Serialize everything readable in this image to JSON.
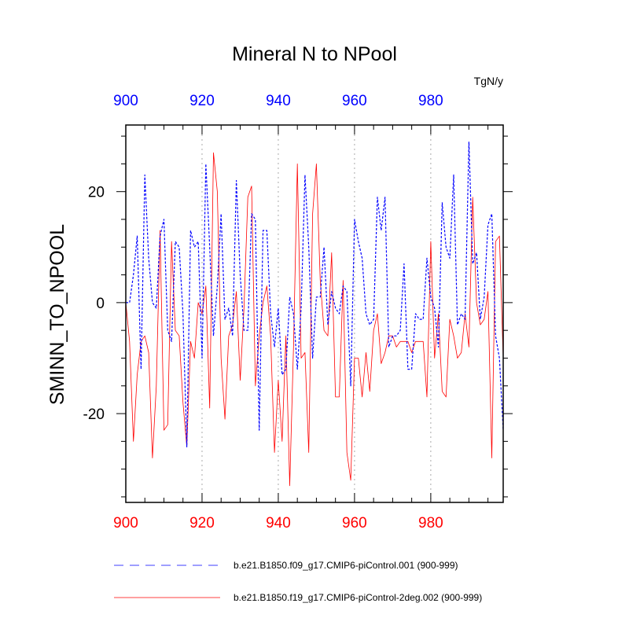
{
  "chart_data": {
    "type": "line",
    "title": "Mineral N to NPool",
    "units": "TgN/y",
    "ylabel": "SMINN_TO_NPOOL",
    "xlim": [
      900,
      999
    ],
    "ylim": [
      -36,
      32
    ],
    "x_ticks": [
      900,
      920,
      940,
      960,
      980
    ],
    "y_ticks": [
      -20,
      0,
      20
    ],
    "grid": "vertical dotted at major x ticks",
    "top_axis_color": "#0000ff",
    "bottom_axis_color": "#ff0000",
    "series": [
      {
        "name": "b.e21.B1850.f09_g17.CMIP6-piControl.001 (900-999)",
        "color": "#0000ff",
        "dash": "dashed",
        "x_start": 900,
        "values": [
          0,
          0,
          5,
          12,
          -12,
          23,
          8,
          0,
          -1,
          12,
          15,
          -5,
          -7,
          11,
          10,
          -2,
          -26,
          13,
          10,
          11,
          -10,
          25,
          10,
          -6,
          3,
          16,
          -3,
          -1,
          -6,
          22,
          5,
          -5,
          -5,
          16,
          15,
          -23,
          13,
          13,
          -2,
          -8,
          -1,
          -13,
          -12,
          1,
          -2,
          -12,
          -1,
          23,
          10,
          -10,
          1,
          1,
          10,
          -4,
          2,
          -1,
          -2,
          3,
          2,
          -15,
          15,
          11,
          8,
          -2,
          -4,
          -3,
          19,
          13,
          19,
          -8,
          -6,
          -6,
          -5,
          7,
          -12,
          -12,
          -2,
          -3,
          -3,
          8,
          1,
          -1,
          -8,
          18,
          10,
          8,
          23,
          -4,
          -2,
          -3,
          29,
          7,
          9,
          -3,
          1,
          14,
          16,
          -6,
          -10,
          -23
        ]
      },
      {
        "name": "b.e21.B1850.f19_g17.CMIP6-piControl-2deg.002 (900-999)",
        "color": "#ff0000",
        "dash": "solid",
        "x_start": 900,
        "values": [
          0,
          -7,
          -25,
          -13,
          -7,
          -6,
          -9,
          -28,
          -15,
          13,
          -23,
          -22,
          11,
          -5,
          -6,
          -18,
          -26,
          -7,
          -10,
          0,
          -2,
          3,
          -19,
          27,
          20,
          -10,
          -21,
          -6,
          -4,
          2,
          -14,
          -1,
          19,
          21,
          -15,
          -6,
          0,
          3,
          -6,
          -27,
          -14,
          -25,
          -6,
          -33,
          -8,
          25,
          -10,
          -9,
          -27,
          16,
          25,
          4,
          -5,
          -6,
          9,
          -17,
          -17,
          4,
          -27,
          -32,
          -10,
          -10,
          -17,
          -9,
          -16,
          -5,
          -2,
          -11,
          -9,
          -6,
          -6,
          -8,
          -7,
          -7,
          -7,
          -9,
          -7,
          -7,
          -7,
          -17,
          11,
          -10,
          -2,
          -16,
          -17,
          -3,
          -6,
          -10,
          -9,
          -2,
          -8,
          19,
          0,
          -4,
          -3,
          2,
          -28,
          11,
          12,
          -10
        ]
      }
    ]
  }
}
